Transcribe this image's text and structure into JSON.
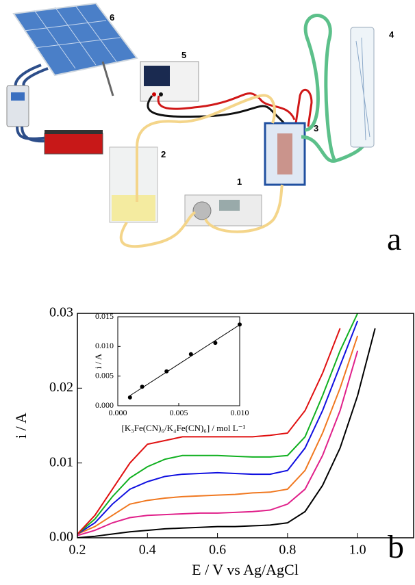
{
  "panel_a": {
    "labels": [
      "1",
      "2",
      "3",
      "4",
      "5",
      "6"
    ],
    "panel_label": "a"
  },
  "chart_data": [
    {
      "type": "line",
      "panel_label": "b",
      "xlabel": "E / V vs Ag/AgCl",
      "ylabel": "i / A",
      "x": [
        0.2,
        0.25,
        0.3,
        0.35,
        0.4,
        0.45,
        0.5,
        0.55,
        0.6,
        0.65,
        0.7,
        0.75,
        0.8,
        0.85,
        0.9,
        0.95,
        1.0,
        1.05
      ],
      "series": [
        {
          "color": "#000000",
          "values": [
            0,
            0.0002,
            0.0005,
            0.0008,
            0.001,
            0.0012,
            0.0013,
            0.0014,
            0.0015,
            0.0015,
            0.0016,
            0.0017,
            0.002,
            0.0035,
            0.007,
            0.012,
            0.019,
            0.028
          ]
        },
        {
          "color": "#e0208a",
          "values": [
            0.0003,
            0.001,
            0.002,
            0.0027,
            0.003,
            0.0031,
            0.0032,
            0.0033,
            0.0033,
            0.0034,
            0.0035,
            0.0037,
            0.0045,
            0.0065,
            0.011,
            0.017,
            0.025,
            null
          ]
        },
        {
          "color": "#f07820",
          "values": [
            0.0005,
            0.0015,
            0.003,
            0.0045,
            0.005,
            0.0053,
            0.0055,
            0.0056,
            0.0057,
            0.0058,
            0.006,
            0.0061,
            0.0065,
            0.009,
            0.014,
            0.02,
            0.027,
            null
          ]
        },
        {
          "color": "#1010e0",
          "values": [
            0.0005,
            0.002,
            0.0045,
            0.0065,
            0.0075,
            0.0082,
            0.0085,
            0.0086,
            0.0087,
            0.0086,
            0.0085,
            0.0085,
            0.009,
            0.012,
            0.017,
            0.023,
            0.029,
            null
          ]
        },
        {
          "color": "#10b020",
          "values": [
            0.0005,
            0.0025,
            0.0055,
            0.008,
            0.0095,
            0.0105,
            0.011,
            0.011,
            0.011,
            0.0109,
            0.0108,
            0.0108,
            0.011,
            0.0135,
            0.019,
            0.025,
            0.03,
            null
          ]
        },
        {
          "color": "#e01010",
          "values": [
            0.0005,
            0.003,
            0.0065,
            0.01,
            0.0125,
            0.013,
            0.0135,
            0.0135,
            0.0135,
            0.0135,
            0.0135,
            0.0137,
            0.014,
            0.017,
            0.022,
            0.028,
            null,
            null
          ]
        }
      ],
      "xlim": [
        0.2,
        1.16
      ],
      "ylim": [
        0,
        0.03
      ],
      "xticks": [
        0.2,
        0.4,
        0.6,
        0.8,
        {
          "value": 1,
          "label": "1.0"
        }
      ],
      "yticks": [
        {
          "value": 0,
          "label": "0.00"
        },
        0.01,
        0.02,
        0.03
      ]
    },
    {
      "type": "scatter",
      "xlabel": "[K₃Fe(CN)₆/K₄Fe(CN)₆] / mol L⁻¹",
      "ylabel": "i / A",
      "x": [
        0.001,
        0.002,
        0.004,
        0.006,
        0.008,
        0.01
      ],
      "values": [
        0.0014,
        0.0032,
        0.0058,
        0.0087,
        0.0106,
        0.0137
      ],
      "color": "#000000",
      "fit_line": true,
      "xlim": [
        0,
        0.01
      ],
      "ylim": [
        0,
        0.015
      ],
      "xticks": [
        {
          "value": 0,
          "label": "0.000"
        },
        0.005,
        {
          "value": 0.01,
          "label": "0.010"
        }
      ],
      "yticks": [
        {
          "value": 0,
          "label": "0.000"
        },
        0.005,
        {
          "value": 0.01,
          "label": "0.010"
        },
        0.015
      ]
    }
  ]
}
